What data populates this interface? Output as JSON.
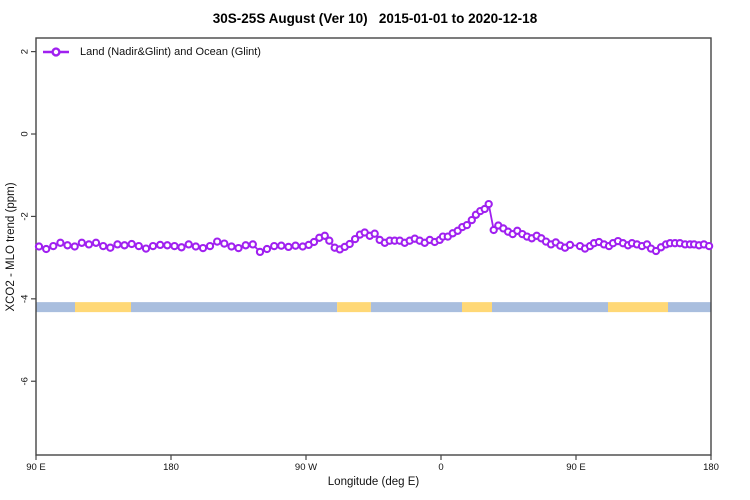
{
  "chart_data": {
    "type": "line",
    "title": "30S-25S August (Ver 10)   2015-01-01 to 2020-12-18",
    "xlabel": "Longitude (deg E)",
    "ylabel": "XCO2 - MLO trend (ppm)",
    "xlim": [
      90,
      540
    ],
    "ylim": [
      -7.79,
      2.33
    ],
    "grid": false,
    "legend_position": "top-left-inside",
    "frame_color": "#454545",
    "text_color": "#111111",
    "x_ticks": [
      {
        "x": 90,
        "label": "90 E"
      },
      {
        "x": 180,
        "label": "180"
      },
      {
        "x": 270,
        "label": "90 W"
      },
      {
        "x": 360,
        "label": "0"
      },
      {
        "x": 450,
        "label": "90 E"
      },
      {
        "x": 540,
        "label": "180"
      }
    ],
    "y_ticks": [
      {
        "v": 2,
        "label": "2"
      },
      {
        "v": 0,
        "label": "0"
      },
      {
        "v": -2,
        "label": "-2"
      },
      {
        "v": -4,
        "label": "-4"
      },
      {
        "v": -6,
        "label": "-6"
      }
    ],
    "series": [
      {
        "name": "Land (Nadir&Glint) and Ocean (Glint)",
        "color": "#A020F0",
        "marker": "open-circle",
        "points": [
          [
            92,
            -2.73
          ],
          [
            96.8,
            -2.79
          ],
          [
            101.5,
            -2.72
          ],
          [
            106.3,
            -2.64
          ],
          [
            111,
            -2.7
          ],
          [
            115.8,
            -2.73
          ],
          [
            120.5,
            -2.64
          ],
          [
            125.3,
            -2.68
          ],
          [
            130,
            -2.64
          ],
          [
            134.8,
            -2.72
          ],
          [
            139.5,
            -2.76
          ],
          [
            144.3,
            -2.68
          ],
          [
            149,
            -2.7
          ],
          [
            153.8,
            -2.67
          ],
          [
            158.5,
            -2.72
          ],
          [
            163.3,
            -2.78
          ],
          [
            168,
            -2.72
          ],
          [
            172.8,
            -2.69
          ],
          [
            177.5,
            -2.7
          ],
          [
            182.3,
            -2.72
          ],
          [
            187,
            -2.75
          ],
          [
            191.8,
            -2.68
          ],
          [
            196.5,
            -2.73
          ],
          [
            201.3,
            -2.77
          ],
          [
            206,
            -2.72
          ],
          [
            210.8,
            -2.61
          ],
          [
            215.5,
            -2.66
          ],
          [
            220.3,
            -2.73
          ],
          [
            225,
            -2.77
          ],
          [
            229.8,
            -2.7
          ],
          [
            234.5,
            -2.68
          ],
          [
            239.3,
            -2.86
          ],
          [
            244,
            -2.79
          ],
          [
            248.8,
            -2.72
          ],
          [
            253.5,
            -2.71
          ],
          [
            258.3,
            -2.74
          ],
          [
            263,
            -2.71
          ],
          [
            267.8,
            -2.73
          ],
          [
            271.8,
            -2.69
          ],
          [
            275.3,
            -2.62
          ],
          [
            278.9,
            -2.52
          ],
          [
            282.5,
            -2.47
          ],
          [
            285.5,
            -2.59
          ],
          [
            289.1,
            -2.76
          ],
          [
            292.5,
            -2.8
          ],
          [
            295.8,
            -2.74
          ],
          [
            299.1,
            -2.67
          ],
          [
            302.7,
            -2.55
          ],
          [
            306,
            -2.44
          ],
          [
            309.1,
            -2.39
          ],
          [
            312.5,
            -2.47
          ],
          [
            315.8,
            -2.42
          ],
          [
            319.1,
            -2.57
          ],
          [
            322.5,
            -2.64
          ],
          [
            325.8,
            -2.59
          ],
          [
            329.1,
            -2.59
          ],
          [
            332.5,
            -2.59
          ],
          [
            335.8,
            -2.64
          ],
          [
            339.1,
            -2.59
          ],
          [
            342.5,
            -2.54
          ],
          [
            345.8,
            -2.59
          ],
          [
            349.1,
            -2.64
          ],
          [
            352.5,
            -2.57
          ],
          [
            355.8,
            -2.62
          ],
          [
            359.1,
            -2.57
          ],
          [
            361.3,
            -2.49
          ],
          [
            364.5,
            -2.49
          ],
          [
            367.8,
            -2.41
          ],
          [
            371.1,
            -2.35
          ],
          [
            374.2,
            -2.26
          ],
          [
            377.3,
            -2.21
          ],
          [
            380.5,
            -2.09
          ],
          [
            383.3,
            -1.96
          ],
          [
            386.2,
            -1.87
          ],
          [
            389.1,
            -1.82
          ],
          [
            391.8,
            -1.7
          ],
          [
            395.1,
            -2.33
          ],
          [
            398.2,
            -2.22
          ],
          [
            401.5,
            -2.29
          ],
          [
            404.7,
            -2.37
          ],
          [
            407.8,
            -2.43
          ],
          [
            410.9,
            -2.35
          ],
          [
            414.2,
            -2.43
          ],
          [
            417.3,
            -2.49
          ],
          [
            420.5,
            -2.53
          ],
          [
            423.8,
            -2.47
          ],
          [
            426.9,
            -2.53
          ],
          [
            430,
            -2.61
          ],
          [
            433.3,
            -2.68
          ],
          [
            436.5,
            -2.63
          ],
          [
            439.5,
            -2.71
          ],
          [
            442.7,
            -2.76
          ],
          [
            446,
            -2.69
          ],
          [
            452.7,
            -2.72
          ],
          [
            456,
            -2.78
          ],
          [
            459.3,
            -2.72
          ],
          [
            462,
            -2.65
          ],
          [
            465.3,
            -2.62
          ],
          [
            468.7,
            -2.68
          ],
          [
            472,
            -2.72
          ],
          [
            474.7,
            -2.65
          ],
          [
            478,
            -2.6
          ],
          [
            481.3,
            -2.65
          ],
          [
            484.7,
            -2.7
          ],
          [
            487.3,
            -2.65
          ],
          [
            490.7,
            -2.68
          ],
          [
            494,
            -2.72
          ],
          [
            497.3,
            -2.68
          ],
          [
            500,
            -2.78
          ],
          [
            503.3,
            -2.84
          ],
          [
            506.7,
            -2.75
          ],
          [
            510,
            -2.68
          ],
          [
            512.7,
            -2.65
          ],
          [
            516,
            -2.65
          ],
          [
            519.3,
            -2.65
          ],
          [
            522.7,
            -2.68
          ],
          [
            526,
            -2.68
          ],
          [
            528.7,
            -2.68
          ],
          [
            532,
            -2.7
          ],
          [
            535.3,
            -2.68
          ],
          [
            538.7,
            -2.72
          ]
        ]
      }
    ],
    "surface_bar": {
      "y_value": -4.2,
      "colors": {
        "land": "#FFD876",
        "ocean": "#A9BEDE"
      },
      "segments": [
        {
          "from": 90,
          "to": 116,
          "type": "ocean"
        },
        {
          "from": 116,
          "to": 153.3,
          "type": "land"
        },
        {
          "from": 153.3,
          "to": 290.7,
          "type": "ocean"
        },
        {
          "from": 290.7,
          "to": 313.3,
          "type": "land"
        },
        {
          "from": 313.3,
          "to": 374,
          "type": "ocean"
        },
        {
          "from": 374,
          "to": 394,
          "type": "land"
        },
        {
          "from": 394,
          "to": 471.3,
          "type": "ocean"
        },
        {
          "from": 471.3,
          "to": 511.3,
          "type": "land"
        },
        {
          "from": 511.3,
          "to": 540,
          "type": "ocean"
        }
      ]
    }
  }
}
